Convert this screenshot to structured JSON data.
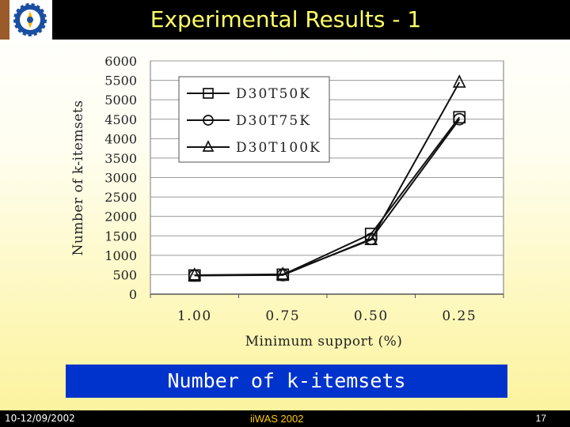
{
  "slide": {
    "title": "Experimental Results - 1",
    "caption": "Number of k-itemsets"
  },
  "footer": {
    "date": "10-12/09/2002",
    "conference": "iiWAS 2002",
    "page": "17"
  },
  "colors": {
    "title_text": "#ffff66",
    "caption_bg": "#0033cc",
    "conference_text": "#ffcc00"
  },
  "chart_data": {
    "type": "line",
    "categories": [
      "1.00",
      "0.75",
      "0.50",
      "0.25"
    ],
    "xlabel": "Minimum support (%)",
    "ylabel": "Number of k-itemsets",
    "ylim": [
      0,
      6000
    ],
    "yticks": [
      0,
      500,
      1000,
      1500,
      2000,
      2500,
      3000,
      3500,
      4000,
      4500,
      5000,
      5500,
      6000
    ],
    "grid": true,
    "legend_position": "top-left",
    "series": [
      {
        "name": "D30T50K",
        "marker": "square",
        "values": [
          480,
          500,
          1550,
          4550
        ]
      },
      {
        "name": "D30T75K",
        "marker": "circle",
        "values": [
          480,
          490,
          1420,
          4500
        ]
      },
      {
        "name": "D30T100K",
        "marker": "triangle",
        "values": [
          490,
          510,
          1400,
          5450
        ]
      }
    ]
  }
}
